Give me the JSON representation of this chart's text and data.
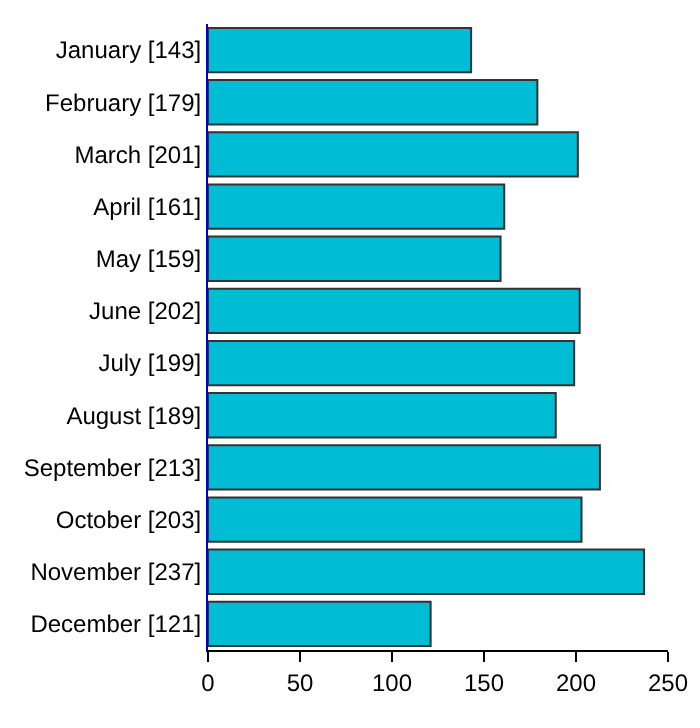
{
  "chart_data": {
    "type": "bar",
    "orientation": "horizontal",
    "categories": [
      "January [143]",
      "February [179]",
      "March [201]",
      "April [161]",
      "May [159]",
      "June [202]",
      "July [199]",
      "August [189]",
      "September [213]",
      "October [203]",
      "November [237]",
      "December [121]"
    ],
    "values": [
      143,
      179,
      201,
      161,
      159,
      202,
      199,
      189,
      213,
      203,
      237,
      121
    ],
    "color": "#00bcd4",
    "xlim": [
      0,
      250
    ],
    "xticks": [
      0,
      50,
      100,
      150,
      200,
      250
    ],
    "grid": false
  }
}
